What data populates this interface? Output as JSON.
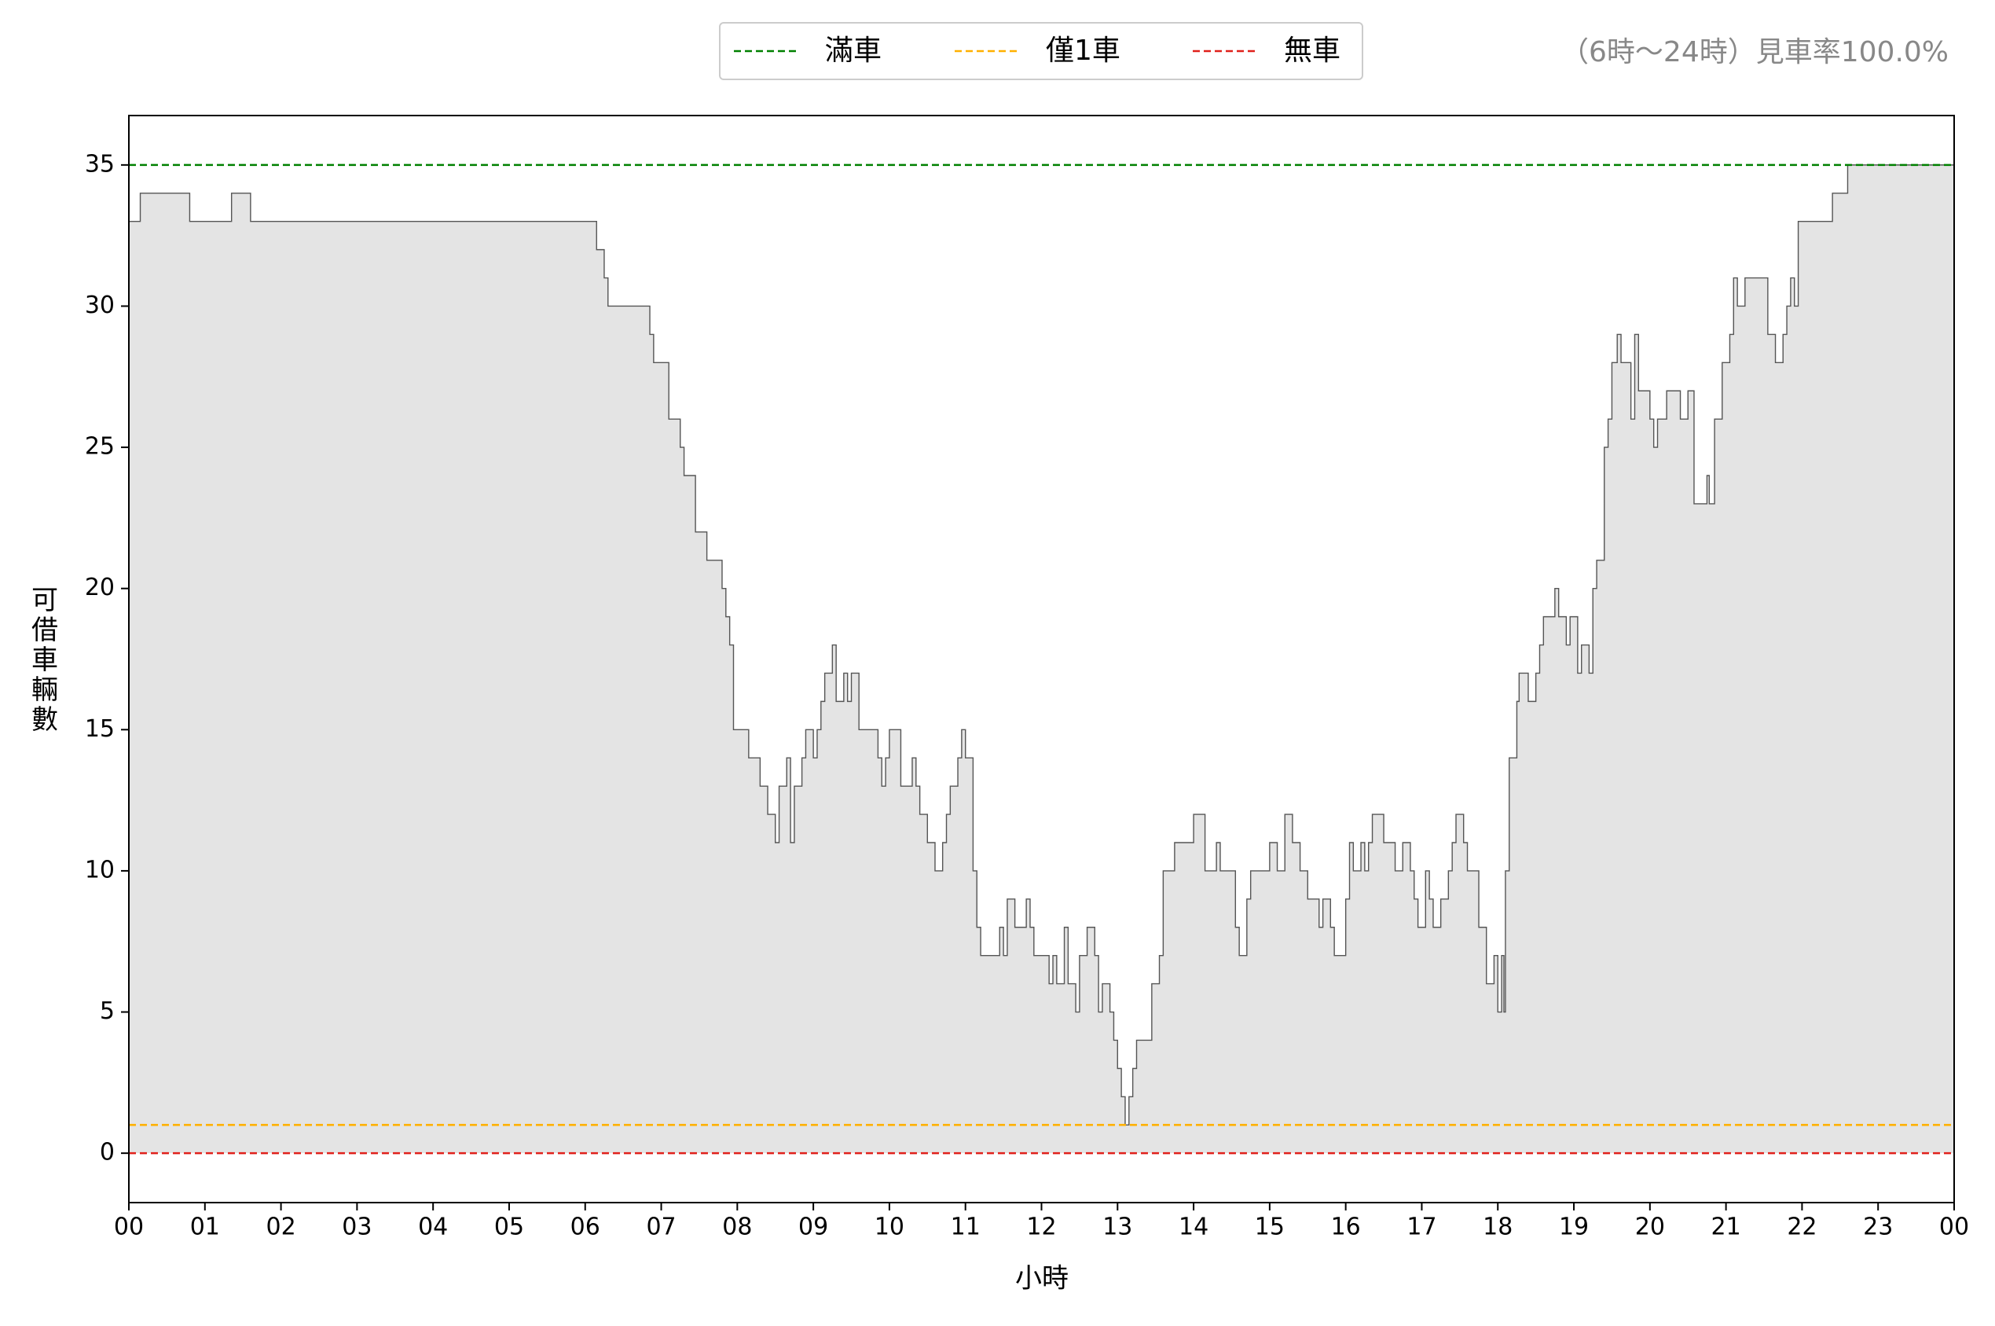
{
  "chart_data": {
    "type": "step-area",
    "annotation": "（6時～24時）見車率100.0%",
    "xlabel": "小時",
    "ylabel": "可借車輛數",
    "xlim": [
      0,
      24
    ],
    "ylim": [
      -1.75,
      36.75
    ],
    "xticks": [
      {
        "value": 0,
        "label": "00"
      },
      {
        "value": 1,
        "label": "01"
      },
      {
        "value": 2,
        "label": "02"
      },
      {
        "value": 3,
        "label": "03"
      },
      {
        "value": 4,
        "label": "04"
      },
      {
        "value": 5,
        "label": "05"
      },
      {
        "value": 6,
        "label": "06"
      },
      {
        "value": 7,
        "label": "07"
      },
      {
        "value": 8,
        "label": "08"
      },
      {
        "value": 9,
        "label": "09"
      },
      {
        "value": 10,
        "label": "10"
      },
      {
        "value": 11,
        "label": "11"
      },
      {
        "value": 12,
        "label": "12"
      },
      {
        "value": 13,
        "label": "13"
      },
      {
        "value": 14,
        "label": "14"
      },
      {
        "value": 15,
        "label": "15"
      },
      {
        "value": 16,
        "label": "16"
      },
      {
        "value": 17,
        "label": "17"
      },
      {
        "value": 18,
        "label": "18"
      },
      {
        "value": 19,
        "label": "19"
      },
      {
        "value": 20,
        "label": "20"
      },
      {
        "value": 21,
        "label": "21"
      },
      {
        "value": 22,
        "label": "22"
      },
      {
        "value": 23,
        "label": "23"
      },
      {
        "value": 24,
        "label": "00"
      }
    ],
    "yticks": [
      0,
      5,
      10,
      15,
      20,
      25,
      30,
      35
    ],
    "hlines": [
      {
        "name": "滿車",
        "value": 35,
        "color": "#008000"
      },
      {
        "name": "僅1車",
        "value": 1,
        "color": "#ffb000"
      },
      {
        "name": "無車",
        "value": 0,
        "color": "#e0201b"
      }
    ],
    "x": [
      0,
      0.15,
      0.8,
      1.35,
      1.6,
      6.15,
      6.25,
      6.3,
      6.85,
      6.9,
      7.1,
      7.25,
      7.3,
      7.45,
      7.6,
      7.8,
      7.85,
      7.9,
      7.95,
      8.15,
      8.3,
      8.4,
      8.5,
      8.55,
      8.65,
      8.7,
      8.75,
      8.85,
      8.9,
      9.0,
      9.05,
      9.1,
      9.15,
      9.25,
      9.3,
      9.4,
      9.45,
      9.5,
      9.6,
      9.85,
      9.9,
      9.95,
      10.0,
      10.15,
      10.3,
      10.35,
      10.4,
      10.5,
      10.6,
      10.7,
      10.75,
      10.8,
      10.9,
      10.95,
      11.0,
      11.1,
      11.15,
      11.2,
      11.45,
      11.5,
      11.55,
      11.65,
      11.8,
      11.85,
      11.9,
      12.1,
      12.15,
      12.2,
      12.3,
      12.35,
      12.45,
      12.5,
      12.6,
      12.7,
      12.75,
      12.8,
      12.9,
      12.95,
      13.0,
      13.05,
      13.1,
      13.15,
      13.2,
      13.25,
      13.45,
      13.55,
      13.6,
      13.75,
      14.0,
      14.15,
      14.3,
      14.35,
      14.55,
      14.6,
      14.7,
      14.75,
      15.0,
      15.1,
      15.2,
      15.3,
      15.4,
      15.5,
      15.65,
      15.7,
      15.8,
      15.85,
      16.0,
      16.05,
      16.1,
      16.2,
      16.25,
      16.3,
      16.35,
      16.5,
      16.65,
      16.75,
      16.85,
      16.9,
      16.95,
      17.05,
      17.1,
      17.15,
      17.25,
      17.35,
      17.4,
      17.45,
      17.55,
      17.6,
      17.75,
      17.85,
      17.95,
      18.0,
      18.05,
      18.08,
      18.1,
      18.15,
      18.25,
      18.28,
      18.4,
      18.5,
      18.55,
      18.6,
      18.75,
      18.8,
      18.9,
      18.95,
      19.05,
      19.1,
      19.2,
      19.25,
      19.3,
      19.4,
      19.45,
      19.5,
      19.57,
      19.62,
      19.75,
      19.8,
      19.85,
      20.0,
      20.05,
      20.1,
      20.22,
      20.4,
      20.5,
      20.58,
      20.75,
      20.78,
      20.85,
      20.95,
      21.05,
      21.1,
      21.15,
      21.25,
      21.55,
      21.65,
      21.75,
      21.8,
      21.85,
      21.9,
      21.95,
      22.4,
      22.6,
      24.0
    ],
    "series": [
      {
        "color": "#555555",
        "fill": "#e4e4e4",
        "values": [
          33,
          34,
          33,
          34,
          33,
          32,
          31,
          30,
          29,
          28,
          26,
          25,
          24,
          22,
          21,
          20,
          19,
          18,
          15,
          14,
          13,
          12,
          11,
          13,
          14,
          11,
          13,
          14,
          15,
          14,
          15,
          16,
          17,
          18,
          16,
          17,
          16,
          17,
          15,
          14,
          13,
          14,
          15,
          13,
          14,
          13,
          12,
          11,
          10,
          11,
          12,
          13,
          14,
          15,
          14,
          10,
          8,
          7,
          8,
          7,
          9,
          8,
          9,
          8,
          7,
          6,
          7,
          6,
          8,
          6,
          5,
          7,
          8,
          7,
          5,
          6,
          5,
          4,
          3,
          2,
          1,
          2,
          3,
          4,
          6,
          7,
          10,
          11,
          12,
          10,
          11,
          10,
          8,
          7,
          9,
          10,
          11,
          10,
          12,
          11,
          10,
          9,
          8,
          9,
          8,
          7,
          9,
          11,
          10,
          11,
          10,
          11,
          12,
          11,
          10,
          11,
          10,
          9,
          8,
          10,
          9,
          8,
          9,
          10,
          11,
          12,
          11,
          10,
          8,
          6,
          7,
          5,
          7,
          5,
          10,
          14,
          16,
          17,
          16,
          17,
          18,
          19,
          20,
          19,
          18,
          19,
          17,
          18,
          17,
          20,
          21,
          25,
          26,
          28,
          29,
          28,
          26,
          29,
          27,
          26,
          25,
          26,
          27,
          26,
          27,
          23,
          24,
          23,
          26,
          28,
          29,
          31,
          30,
          31,
          29,
          28,
          29,
          30,
          31,
          30,
          33,
          34,
          35,
          33
        ]
      }
    ]
  }
}
